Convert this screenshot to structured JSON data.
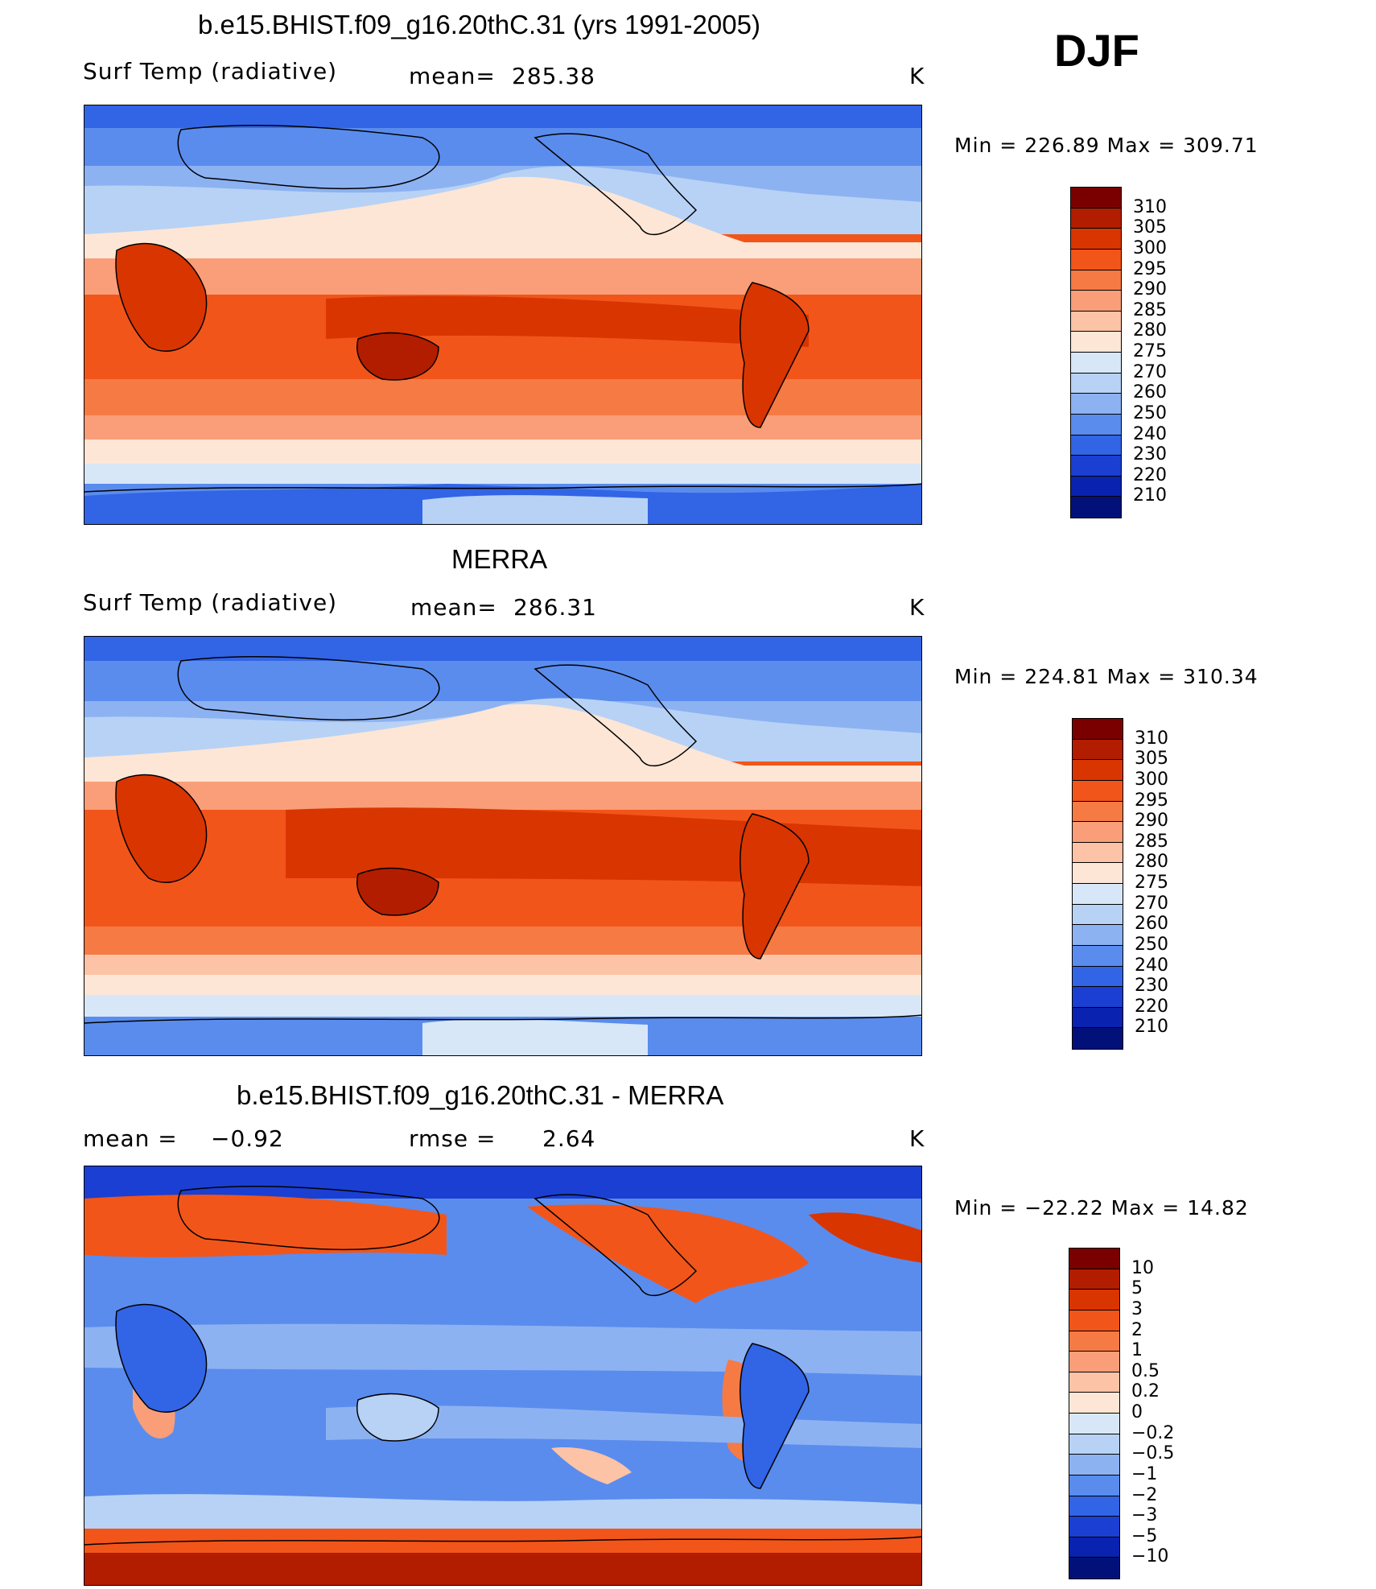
{
  "season": "DJF",
  "unit": "K",
  "panels": [
    {
      "id": "model",
      "title": "b.e15.BHIST.f09_g16.20thC.31 (yrs 1991-2005)",
      "left_label": "Surf Temp (radiative)",
      "stat_label": "mean=",
      "stat_value": "285.38",
      "stat2_label": "",
      "stat2_value": "",
      "unit": "K",
      "min_max": "Min = 226.89 Max = 309.71",
      "palette": "abs"
    },
    {
      "id": "obs",
      "title": "MERRA",
      "left_label": "Surf Temp (radiative)",
      "stat_label": "mean=",
      "stat_value": "286.31",
      "stat2_label": "",
      "stat2_value": "",
      "unit": "K",
      "min_max": "Min = 224.81 Max = 310.34",
      "palette": "abs"
    },
    {
      "id": "diff",
      "title": "b.e15.BHIST.f09_g16.20thC.31 - MERRA",
      "left_label": "mean =",
      "stat_label": "",
      "stat_value": "−0.92",
      "stat2_label": "rmse =",
      "stat2_value": "2.64",
      "unit": "K",
      "min_max": "Min = −22.22 Max =   14.82",
      "palette": "diff"
    }
  ],
  "colorbars": {
    "abs": {
      "levels": [
        "310",
        "305",
        "300",
        "295",
        "290",
        "285",
        "280",
        "275",
        "270",
        "260",
        "250",
        "240",
        "230",
        "220",
        "210"
      ],
      "colors": [
        "#7a0000",
        "#b21d00",
        "#d93500",
        "#f2551a",
        "#f67a44",
        "#f99e78",
        "#fcc3a6",
        "#fde6d6",
        "#d7e7f8",
        "#b7d2f5",
        "#8db2f2",
        "#5a8cee",
        "#3264e6",
        "#1a3fd2",
        "#0a22b0",
        "#02117a"
      ]
    },
    "diff": {
      "levels": [
        "10",
        "5",
        "3",
        "2",
        "1",
        "0.5",
        "0.2",
        "0",
        "−0.2",
        "−0.5",
        "−1",
        "−2",
        "−3",
        "−5",
        "−10"
      ],
      "colors": [
        "#7a0000",
        "#b21d00",
        "#d93500",
        "#f2551a",
        "#f67a44",
        "#f99e78",
        "#fcc3a6",
        "#fde6d6",
        "#d7e7f8",
        "#b7d2f5",
        "#8db2f2",
        "#5a8cee",
        "#3264e6",
        "#1a3fd2",
        "#0a22b0",
        "#02117a"
      ]
    }
  }
}
